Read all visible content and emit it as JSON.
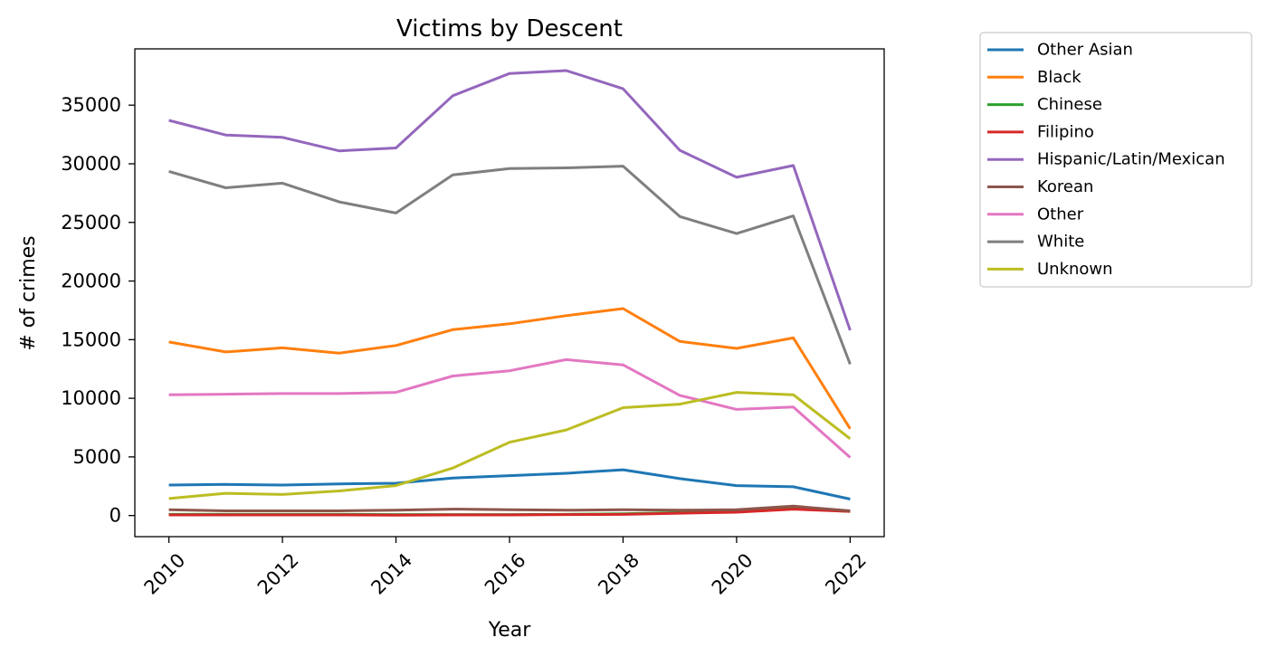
{
  "chart_data": {
    "type": "line",
    "title": "Victims by Descent",
    "xlabel": "Year",
    "ylabel": "# of crimes",
    "x": [
      2010,
      2011,
      2012,
      2013,
      2014,
      2015,
      2016,
      2017,
      2018,
      2019,
      2020,
      2021,
      2022
    ],
    "xticks": [
      2010,
      2012,
      2014,
      2016,
      2018,
      2020,
      2022
    ],
    "yticks": [
      0,
      5000,
      10000,
      15000,
      20000,
      25000,
      30000,
      35000
    ],
    "xlim": [
      2009.4,
      2022.6
    ],
    "ylim": [
      -1800,
      39800
    ],
    "grid": false,
    "legend_position": "outside-top-right",
    "series": [
      {
        "name": "Other Asian",
        "color": "#1f77b4",
        "values": [
          2600,
          2650,
          2600,
          2700,
          2750,
          3200,
          3400,
          3600,
          3900,
          3150,
          2550,
          2450,
          1400
        ]
      },
      {
        "name": "Black",
        "color": "#ff7f0e",
        "values": [
          14800,
          13950,
          14300,
          13850,
          14500,
          15850,
          16350,
          17050,
          17650,
          14850,
          14250,
          15150,
          7400
        ]
      },
      {
        "name": "Chinese",
        "color": "#2ca02c",
        "values": [
          100,
          100,
          100,
          100,
          80,
          80,
          80,
          100,
          150,
          250,
          300,
          600,
          350
        ]
      },
      {
        "name": "Filipino",
        "color": "#d62728",
        "values": [
          50,
          50,
          50,
          50,
          30,
          50,
          50,
          80,
          100,
          200,
          280,
          550,
          350
        ]
      },
      {
        "name": "Hispanic/Latin/Mexican",
        "color": "#9467bd",
        "values": [
          33700,
          32450,
          32250,
          31100,
          31350,
          35800,
          37700,
          37950,
          36400,
          31150,
          28850,
          29850,
          15800
        ]
      },
      {
        "name": "Korean",
        "color": "#8c564b",
        "values": [
          500,
          400,
          400,
          400,
          450,
          550,
          500,
          450,
          500,
          450,
          500,
          800,
          400
        ]
      },
      {
        "name": "Other",
        "color": "#e377c2",
        "values": [
          10300,
          10350,
          10400,
          10400,
          10500,
          11900,
          12350,
          13300,
          12850,
          10250,
          9050,
          9250,
          4950
        ]
      },
      {
        "name": "White",
        "color": "#7f7f7f",
        "values": [
          29350,
          27950,
          28350,
          26750,
          25800,
          29050,
          29600,
          29650,
          29800,
          25500,
          24050,
          25550,
          12900
        ]
      },
      {
        "name": "Unknown",
        "color": "#bcbd22",
        "values": [
          1450,
          1900,
          1800,
          2100,
          2550,
          4050,
          6250,
          7300,
          9200,
          9500,
          10500,
          10300,
          6550
        ]
      }
    ]
  }
}
